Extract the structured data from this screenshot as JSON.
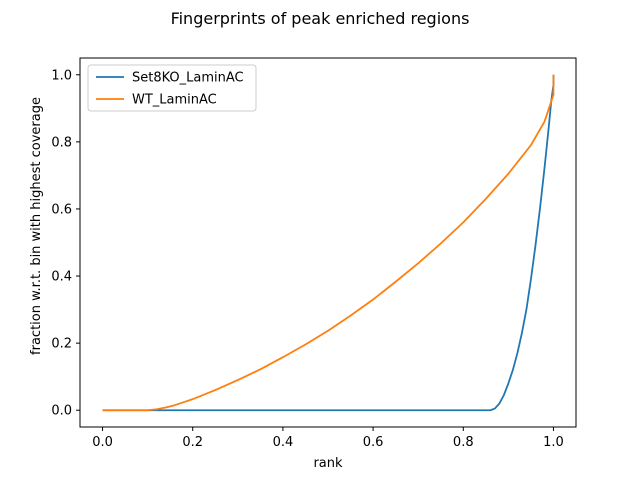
{
  "chart_data": {
    "type": "line",
    "title": "Fingerprints of peak enriched regions",
    "xlabel": "rank",
    "ylabel": "fraction w.r.t. bin with highest coverage",
    "xlim": [
      -0.05,
      1.05
    ],
    "ylim": [
      -0.05,
      1.05
    ],
    "xticks": [
      "0.0",
      "0.2",
      "0.4",
      "0.6",
      "0.8",
      "1.0"
    ],
    "yticks": [
      "0.0",
      "0.2",
      "0.4",
      "0.6",
      "0.8",
      "1.0"
    ],
    "grid": false,
    "legend_position": "upper left",
    "series": [
      {
        "name": "Set8KO_LaminAC",
        "color": "#1f77b4",
        "x": [
          0.0,
          0.1,
          0.2,
          0.3,
          0.4,
          0.5,
          0.6,
          0.7,
          0.8,
          0.86,
          0.87,
          0.88,
          0.89,
          0.9,
          0.91,
          0.92,
          0.93,
          0.94,
          0.95,
          0.96,
          0.97,
          0.98,
          0.99,
          0.995,
          1.0,
          1.0
        ],
        "y": [
          0.0,
          0.0,
          0.0,
          0.0,
          0.0,
          0.0,
          0.0,
          0.0,
          0.0,
          0.0,
          0.005,
          0.02,
          0.045,
          0.08,
          0.12,
          0.17,
          0.23,
          0.3,
          0.39,
          0.49,
          0.6,
          0.72,
          0.85,
          0.92,
          0.97,
          1.0
        ]
      },
      {
        "name": "WT_LaminAC",
        "color": "#ff7f0e",
        "x": [
          0.0,
          0.05,
          0.1,
          0.12,
          0.14,
          0.16,
          0.18,
          0.2,
          0.25,
          0.3,
          0.35,
          0.4,
          0.45,
          0.5,
          0.55,
          0.6,
          0.65,
          0.7,
          0.75,
          0.8,
          0.85,
          0.9,
          0.95,
          0.98,
          1.0,
          1.0
        ],
        "y": [
          0.0,
          0.0,
          0.0,
          0.003,
          0.008,
          0.015,
          0.024,
          0.033,
          0.06,
          0.09,
          0.122,
          0.158,
          0.196,
          0.237,
          0.282,
          0.33,
          0.383,
          0.438,
          0.497,
          0.56,
          0.63,
          0.705,
          0.79,
          0.86,
          0.94,
          1.0
        ]
      }
    ]
  }
}
